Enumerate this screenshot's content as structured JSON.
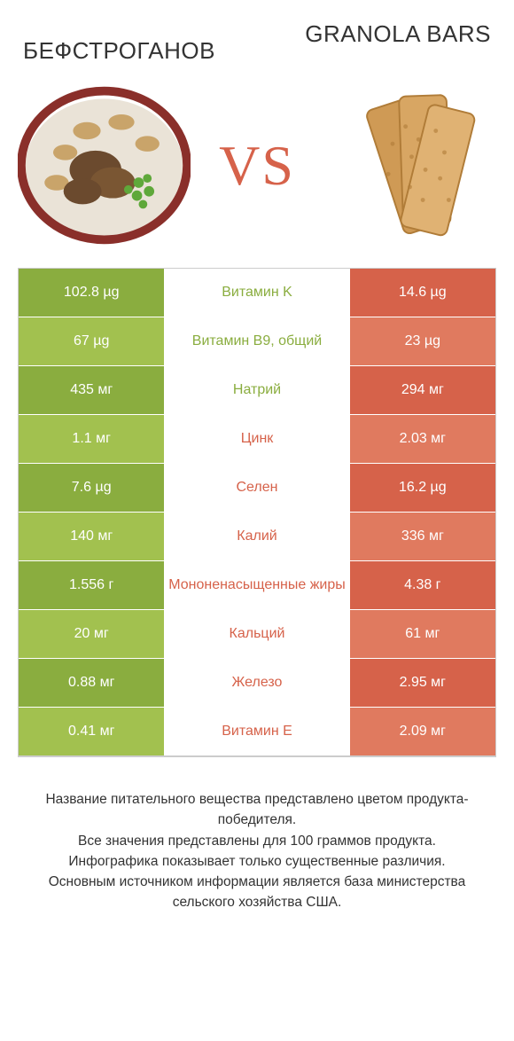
{
  "titles": {
    "left": "БЕФСТРОГАНОВ",
    "right": "GRANOLA BARS"
  },
  "vs_label": "VS",
  "colors": {
    "green_dark": "#8aad3f",
    "green_light": "#a2c14f",
    "orange_dark": "#d6624a",
    "orange_light": "#e07a5f",
    "text_green": "#8aad3f",
    "text_orange": "#d6624a",
    "border": "#cccccc",
    "background": "#ffffff"
  },
  "rows": [
    {
      "nutrient": "Витамин K",
      "left": "102.8 µg",
      "right": "14.6 µg",
      "winner": "left"
    },
    {
      "nutrient": "Витамин B9, общий",
      "left": "67 µg",
      "right": "23 µg",
      "winner": "left"
    },
    {
      "nutrient": "Натрий",
      "left": "435 мг",
      "right": "294 мг",
      "winner": "left"
    },
    {
      "nutrient": "Цинк",
      "left": "1.1 мг",
      "right": "2.03 мг",
      "winner": "right"
    },
    {
      "nutrient": "Селен",
      "left": "7.6 µg",
      "right": "16.2 µg",
      "winner": "right"
    },
    {
      "nutrient": "Калий",
      "left": "140 мг",
      "right": "336 мг",
      "winner": "right"
    },
    {
      "nutrient": "Мононенасыщенные жиры",
      "left": "1.556 г",
      "right": "4.38 г",
      "winner": "right"
    },
    {
      "nutrient": "Кальций",
      "left": "20 мг",
      "right": "61 мг",
      "winner": "right"
    },
    {
      "nutrient": "Железо",
      "left": "0.88 мг",
      "right": "2.95 мг",
      "winner": "right"
    },
    {
      "nutrient": "Витамин E",
      "left": "0.41 мг",
      "right": "2.09 мг",
      "winner": "right"
    }
  ],
  "footer_lines": [
    "Название питательного вещества представлено цветом продукта-победителя.",
    "Все значения представлены для 100 граммов продукта.",
    "Инфографика показывает только существенные различия.",
    "Основным источником информации является база министерства сельского хозяйства США."
  ]
}
